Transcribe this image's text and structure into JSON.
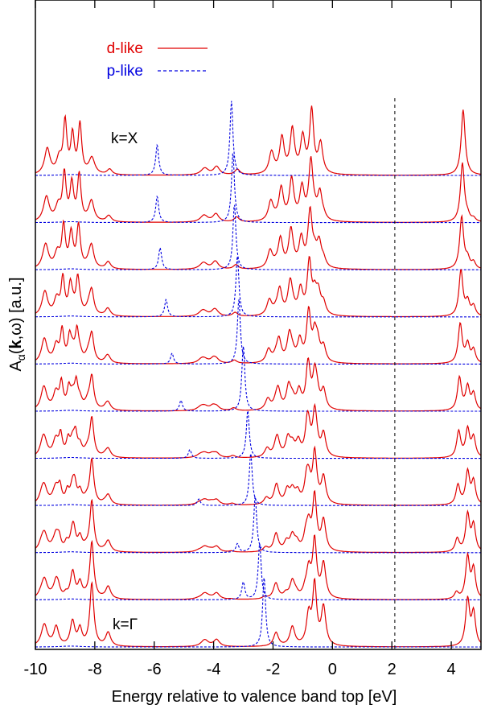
{
  "chart_data": {
    "type": "line",
    "xlabel": "Energy relative to valence band top [eV]",
    "ylabel": {
      "main": "A",
      "sub": "α",
      "open": "(",
      "bold": "k",
      "rest": ",ω)  [a.u.]"
    },
    "xlim": [
      -10,
      5
    ],
    "xticks": [
      "-10",
      "-8",
      "-6",
      "-4",
      "-2",
      "0",
      "2",
      "4"
    ],
    "xtick_values": [
      -10,
      -8,
      -6,
      -4,
      -2,
      0,
      2,
      4
    ],
    "dashed_vline_x": 2.1,
    "legend": [
      {
        "label": "d-like",
        "color": "#e00000",
        "style": "solid"
      },
      {
        "label": "p-like",
        "color": "#0000e0",
        "style": "dashed"
      }
    ],
    "annotations": {
      "top_curve": "k=X",
      "bottom_curve": "k=Γ"
    },
    "n_curves": 11,
    "d_like": {
      "color": "#e00000",
      "base_peaks": [
        {
          "e": -9.6,
          "h": 0.95,
          "w": 0.11
        },
        {
          "e": -9.2,
          "h": 0.55,
          "w": 0.1
        },
        {
          "e": -9.0,
          "h": 1.9,
          "w": 0.07
        },
        {
          "e": -8.75,
          "h": 1.4,
          "w": 0.07
        },
        {
          "e": -8.5,
          "h": 1.8,
          "w": 0.07
        },
        {
          "e": -8.1,
          "h": 0.6,
          "w": 0.12
        },
        {
          "e": -7.5,
          "h": 0.2,
          "w": 0.1
        },
        {
          "e": -4.3,
          "h": 0.25,
          "w": 0.15
        },
        {
          "e": -3.9,
          "h": 0.3,
          "w": 0.12
        },
        {
          "e": -3.2,
          "h": 0.2,
          "w": 0.1
        },
        {
          "e": -2.05,
          "h": 0.8,
          "w": 0.1
        },
        {
          "e": -1.7,
          "h": 1.3,
          "w": 0.09
        },
        {
          "e": -1.35,
          "h": 1.6,
          "w": 0.09
        },
        {
          "e": -1.0,
          "h": 1.3,
          "w": 0.09
        },
        {
          "e": -0.7,
          "h": 2.3,
          "w": 0.08
        },
        {
          "e": -0.4,
          "h": 1.1,
          "w": 0.09
        },
        {
          "e": 4.4,
          "h": 2.4,
          "w": 0.08
        }
      ],
      "top_peaks": [
        {
          "e": -9.7,
          "h": 0.8,
          "w": 0.12
        },
        {
          "e": -9.3,
          "h": 0.7,
          "w": 0.1
        },
        {
          "e": -8.75,
          "h": 0.9,
          "w": 0.09
        },
        {
          "e": -8.5,
          "h": 0.6,
          "w": 0.08
        },
        {
          "e": -8.1,
          "h": 2.3,
          "w": 0.08
        },
        {
          "e": -7.55,
          "h": 0.5,
          "w": 0.1
        },
        {
          "e": -4.3,
          "h": 0.25,
          "w": 0.15
        },
        {
          "e": -3.9,
          "h": 0.25,
          "w": 0.12
        },
        {
          "e": -1.9,
          "h": 0.5,
          "w": 0.1
        },
        {
          "e": -1.35,
          "h": 0.7,
          "w": 0.1
        },
        {
          "e": -0.8,
          "h": 1.1,
          "w": 0.09
        },
        {
          "e": -0.6,
          "h": 2.2,
          "w": 0.08
        },
        {
          "e": -0.3,
          "h": 1.4,
          "w": 0.09
        },
        {
          "e": 4.55,
          "h": 1.7,
          "w": 0.08
        },
        {
          "e": 4.75,
          "h": 1.2,
          "w": 0.08
        }
      ]
    },
    "p_like": {
      "color": "#0000e0",
      "main_peak_e": [
        -2.3,
        -2.45,
        -2.6,
        -2.75,
        -2.85,
        -3.0,
        -3.15,
        -3.2,
        -3.3,
        -3.35,
        -3.4
      ],
      "main_peak_h": [
        1.6,
        1.3,
        1.3,
        1.2,
        1.1,
        1.5,
        1.5,
        1.4,
        1.5,
        1.6,
        1.7
      ],
      "side_peak_e": [
        -2.9,
        -3.0,
        -3.2,
        -4.5,
        -4.8,
        -5.1,
        -5.4,
        -5.6,
        -5.8,
        -5.9,
        -5.9
      ],
      "side_peak_h": [
        0.0,
        0.4,
        0.2,
        0.15,
        0.2,
        0.25,
        0.25,
        0.4,
        0.5,
        0.6,
        0.7
      ]
    }
  }
}
